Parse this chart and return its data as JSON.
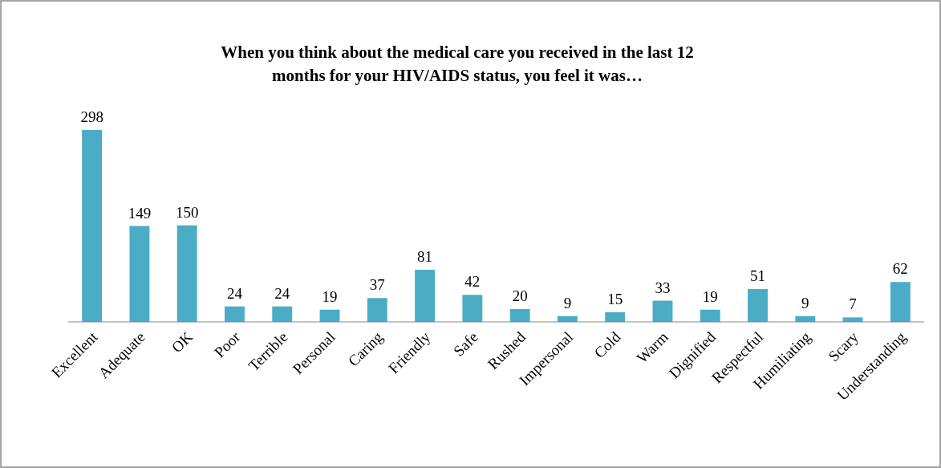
{
  "chart_data": {
    "type": "bar",
    "title": "When you think about the medical care you received in the last 12 months for your HIV/AIDS status, you feel it was…",
    "categories": [
      "Excellent",
      "Adequate",
      "OK",
      "Poor",
      "Terrible",
      "Personal",
      "Caring",
      "Friendly",
      "Safe",
      "Rushed",
      "Impersonal",
      "Cold",
      "Warm",
      "Dignified",
      "Respectful",
      "Humiliating",
      "Scary",
      "Understanding"
    ],
    "values": [
      298,
      149,
      150,
      24,
      24,
      19,
      37,
      81,
      42,
      20,
      9,
      15,
      33,
      19,
      51,
      9,
      7,
      62
    ],
    "color": "#4bacc6",
    "data_labels": true
  }
}
